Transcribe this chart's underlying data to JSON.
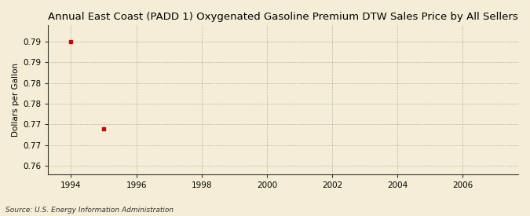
{
  "title": "Annual East Coast (PADD 1) Oxygenated Gasoline Premium DTW Sales Price by All Sellers",
  "ylabel": "Dollars per Gallon",
  "source": "Source: U.S. Energy Information Administration",
  "x_data": [
    1994,
    1995
  ],
  "y_data": [
    0.79,
    0.769
  ],
  "marker_color": "#cc0000",
  "marker": "s",
  "marker_size": 3,
  "xlim": [
    1993.3,
    2007.7
  ],
  "ylim": [
    0.758,
    0.794
  ],
  "y_tick_positions": [
    0.79,
    0.785,
    0.78,
    0.775,
    0.77,
    0.765,
    0.76
  ],
  "y_tick_labels": [
    "0.79",
    "0.79",
    "0.78",
    "0.78",
    "0.77",
    "0.77",
    "0.76"
  ],
  "xticks": [
    1994,
    1996,
    1998,
    2000,
    2002,
    2004,
    2006
  ],
  "background_color": "#f5edd5",
  "grid_color": "#aaaaaa",
  "title_fontsize": 9.5,
  "label_fontsize": 7.5,
  "tick_fontsize": 7.5,
  "source_fontsize": 6.5
}
